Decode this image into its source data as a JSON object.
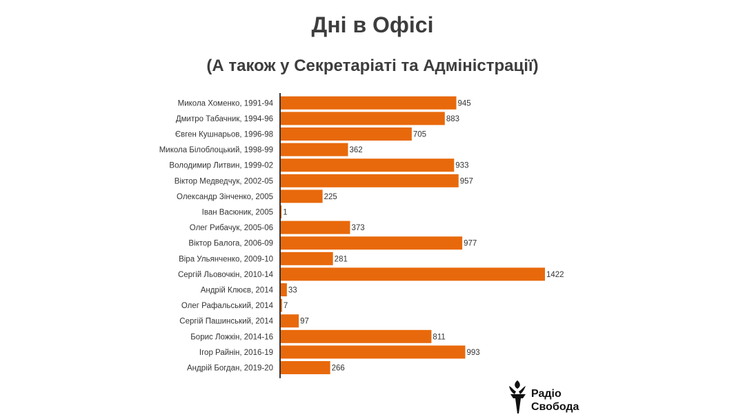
{
  "title": "Дні в Офісі",
  "subtitle": "(А також у Секретаріаті та Адміністрації)",
  "logo": {
    "line1": "Радіо",
    "line2": "Свобода",
    "icon": "torch-icon"
  },
  "colors": {
    "bar": "#e8690b",
    "axis": "#333333",
    "text": "#333333"
  },
  "chart_data": {
    "type": "bar",
    "orientation": "horizontal",
    "categories": [
      "Микола Хоменко, 1991-94",
      "Дмитро Табачник, 1994-96",
      "Євген Кушнарьов, 1996-98",
      "Микола Білоблоцький, 1998-99",
      "Володимир Литвин, 1999-02",
      "Віктор Медведчук, 2002-05",
      "Олександр Зінченко, 2005",
      "Іван Васюник, 2005",
      "Олег Рибачук, 2005-06",
      "Віктор Балога, 2006-09",
      "Віра Ульянченко, 2009-10",
      "Сергій Льовочкін, 2010-14",
      "Андрій Клюєв, 2014",
      "Олег Рафальський, 2014",
      "Сергій Пашинський, 2014",
      "Борис Ложкін, 2014-16",
      "Ігор Райнін, 2016-19",
      "Андрій Богдан, 2019-20"
    ],
    "values": [
      945,
      883,
      705,
      362,
      933,
      957,
      225,
      1,
      373,
      977,
      281,
      1422,
      33,
      7,
      97,
      811,
      993,
      266
    ],
    "data_labels": true,
    "xlim": [
      0,
      1422
    ]
  }
}
